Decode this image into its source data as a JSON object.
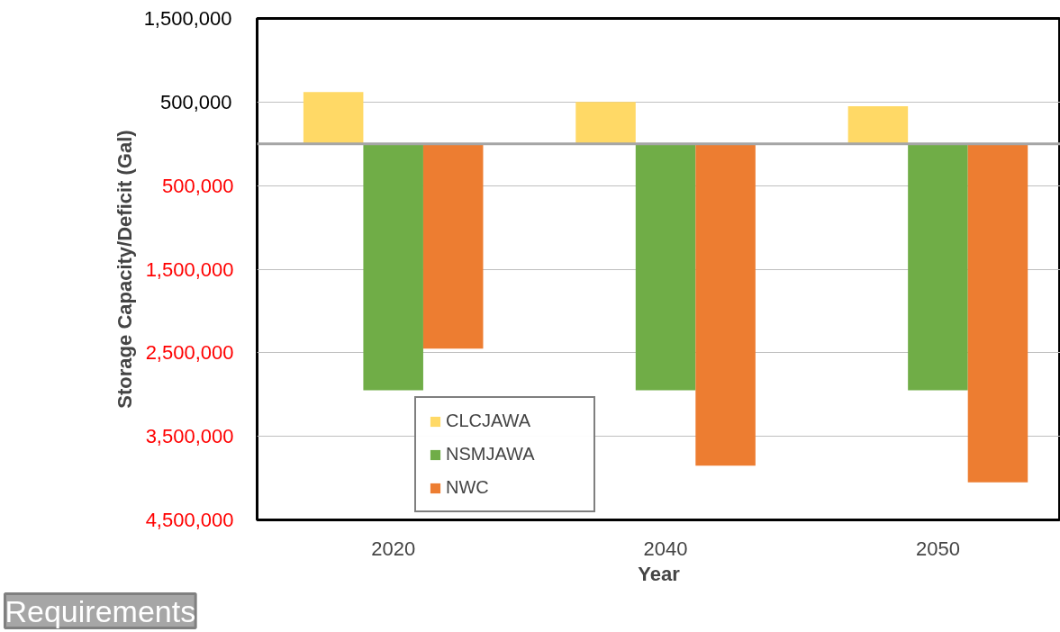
{
  "chart_data": {
    "type": "bar",
    "xlabel": "Year",
    "ylabel": "Storage Capacity/Deficit (Gal)",
    "categories": [
      "2020",
      "2040",
      "2050"
    ],
    "series": [
      {
        "name": "CLCJAWA",
        "color": "#ffd966",
        "values": [
          620000,
          500000,
          450000
        ]
      },
      {
        "name": "NSMJAWA",
        "color": "#70ad47",
        "values": [
          -2950000,
          -2950000,
          -2950000
        ]
      },
      {
        "name": "NWC",
        "color": "#ed7d31",
        "values": [
          -2450000,
          -3850000,
          -4050000
        ]
      }
    ],
    "ylim": [
      -4500000,
      1500000
    ],
    "yticks": [
      {
        "value": 1500000,
        "label": "1,500,000"
      },
      {
        "value": 500000,
        "label": "500,000"
      },
      {
        "value": -500000,
        "label": "500,000"
      },
      {
        "value": -1500000,
        "label": "1,500,000"
      },
      {
        "value": -2500000,
        "label": "2,500,000"
      },
      {
        "value": -3500000,
        "label": "3,500,000"
      },
      {
        "value": -4500000,
        "label": "4,500,000"
      }
    ],
    "grid": "y",
    "legend": "bottom",
    "annotations": [
      "Requirements"
    ]
  }
}
